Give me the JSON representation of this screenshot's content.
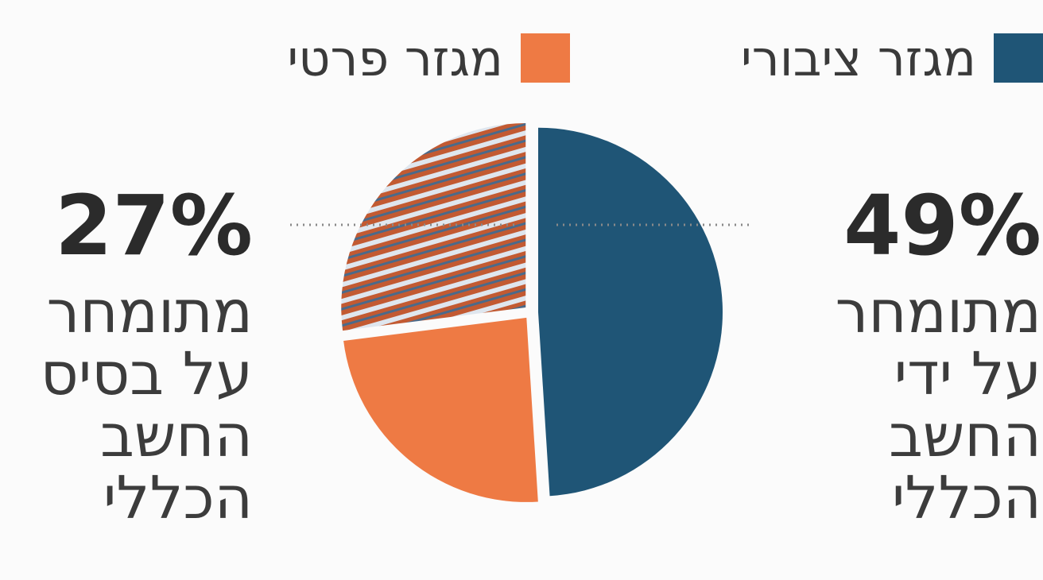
{
  "chart_data": {
    "type": "pie",
    "legend": [
      {
        "label": "מגזר ציבורי",
        "color": "#1f5576"
      },
      {
        "label": "מגזר פרטי",
        "color": "#ee7a44"
      }
    ],
    "slices": [
      {
        "name": "מגזר ציבורי",
        "value": 49,
        "color": "#1f5576",
        "pattern": "solid"
      },
      {
        "name": "מגזר פרטי",
        "value": 24,
        "color": "#ee7a44",
        "pattern": "solid"
      },
      {
        "name": "מגזר פרטי",
        "value": 27,
        "color": "#c9582f",
        "pattern": "striped"
      }
    ],
    "callouts": [
      {
        "value_label": "49%",
        "description": "מתומחר\nעל ידי\nהחשב\nהכללי"
      },
      {
        "value_label": "27%",
        "description": "מתומחר\nעל בסיס\nהחשב\nהכללי"
      }
    ],
    "colors": {
      "public": "#1f5576",
      "private": "#ee7a44",
      "stripe_dark": "#c25a32",
      "stripe_light": "#dfe6ee",
      "leader": "#8a8a8a"
    }
  }
}
